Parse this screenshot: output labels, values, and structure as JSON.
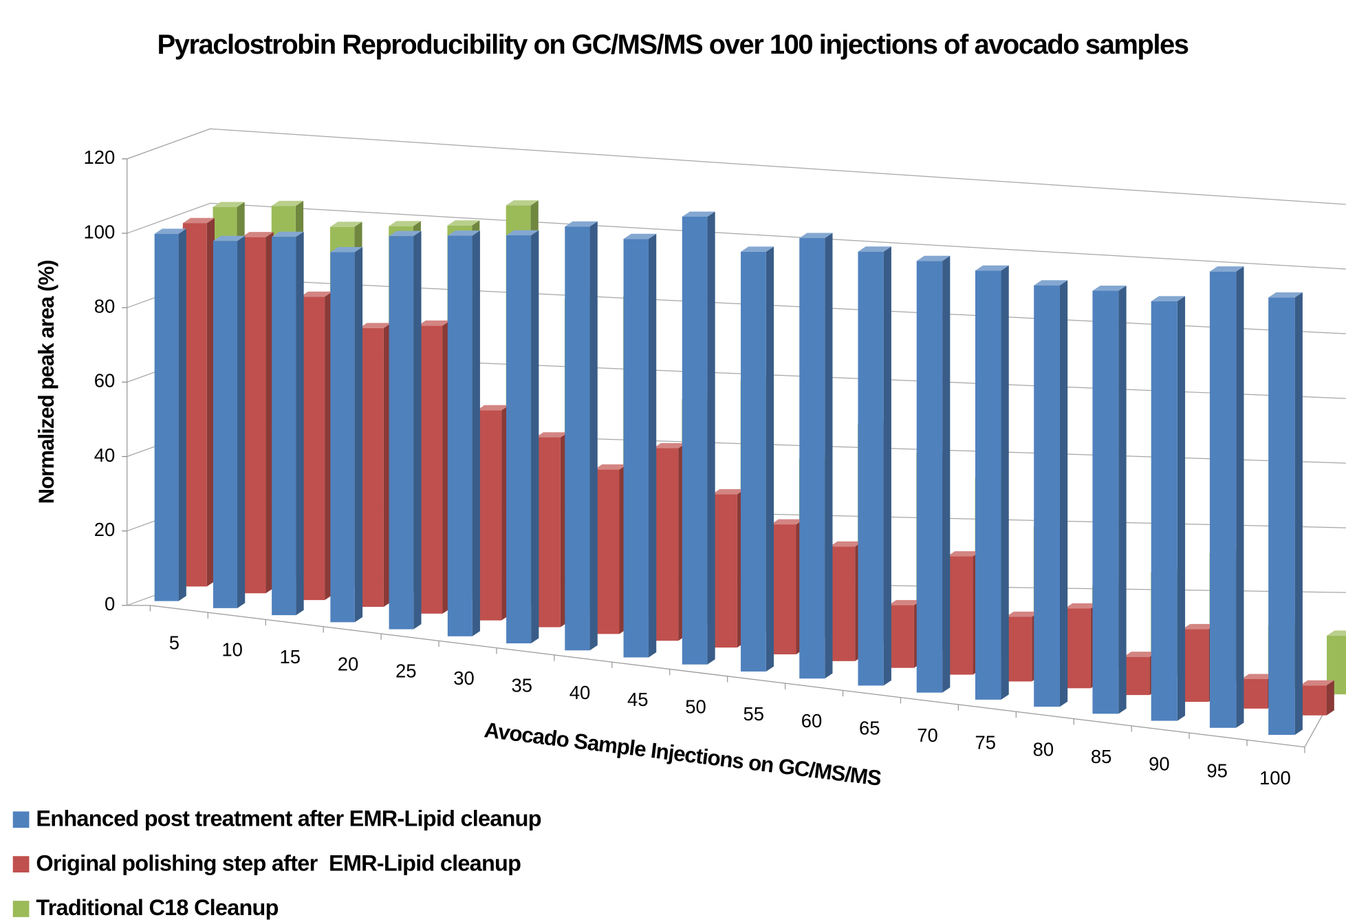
{
  "chart_data": {
    "type": "bar3d",
    "title": "Pyraclostrobin Reproducibility on GC/MS/MS over 100 injections of avocado samples",
    "x_label": "Avocado Sample Injections on GC/MS/MS",
    "y_label": "Normalized peak area (%)",
    "categories": [
      5,
      10,
      15,
      20,
      25,
      30,
      35,
      40,
      45,
      50,
      55,
      60,
      65,
      70,
      75,
      80,
      85,
      90,
      95,
      100
    ],
    "series": [
      {
        "name": "Enhanced post treatment after EMR-Lipid cleanup",
        "color": "#4f81bd",
        "values": [
          99,
          97,
          98,
          94,
          98,
          98,
          98,
          100,
          97,
          102,
          94,
          97,
          94,
          92,
          90,
          87,
          86,
          84,
          90,
          85
        ]
      },
      {
        "name": "Original polishing step after  EMR-Lipid cleanup",
        "color": "#c0504d",
        "values": [
          101,
          97,
          81,
          73,
          74,
          53,
          47,
          40,
          46,
          36,
          30,
          26,
          14,
          26,
          14,
          17,
          8,
          15,
          6,
          6
        ]
      },
      {
        "name": "Traditional C18 Cleanup",
        "color": "#9bbb59",
        "values": [
          104,
          104,
          98,
          98,
          98,
          103,
          79,
          80,
          55,
          60,
          42,
          51,
          45,
          40,
          30,
          18,
          22,
          27,
          13,
          12
        ]
      }
    ],
    "ylim": [
      0,
      120
    ],
    "yticks": [
      0,
      20,
      40,
      60,
      80,
      100,
      120
    ],
    "grid": true,
    "legend": "bottom-left"
  }
}
